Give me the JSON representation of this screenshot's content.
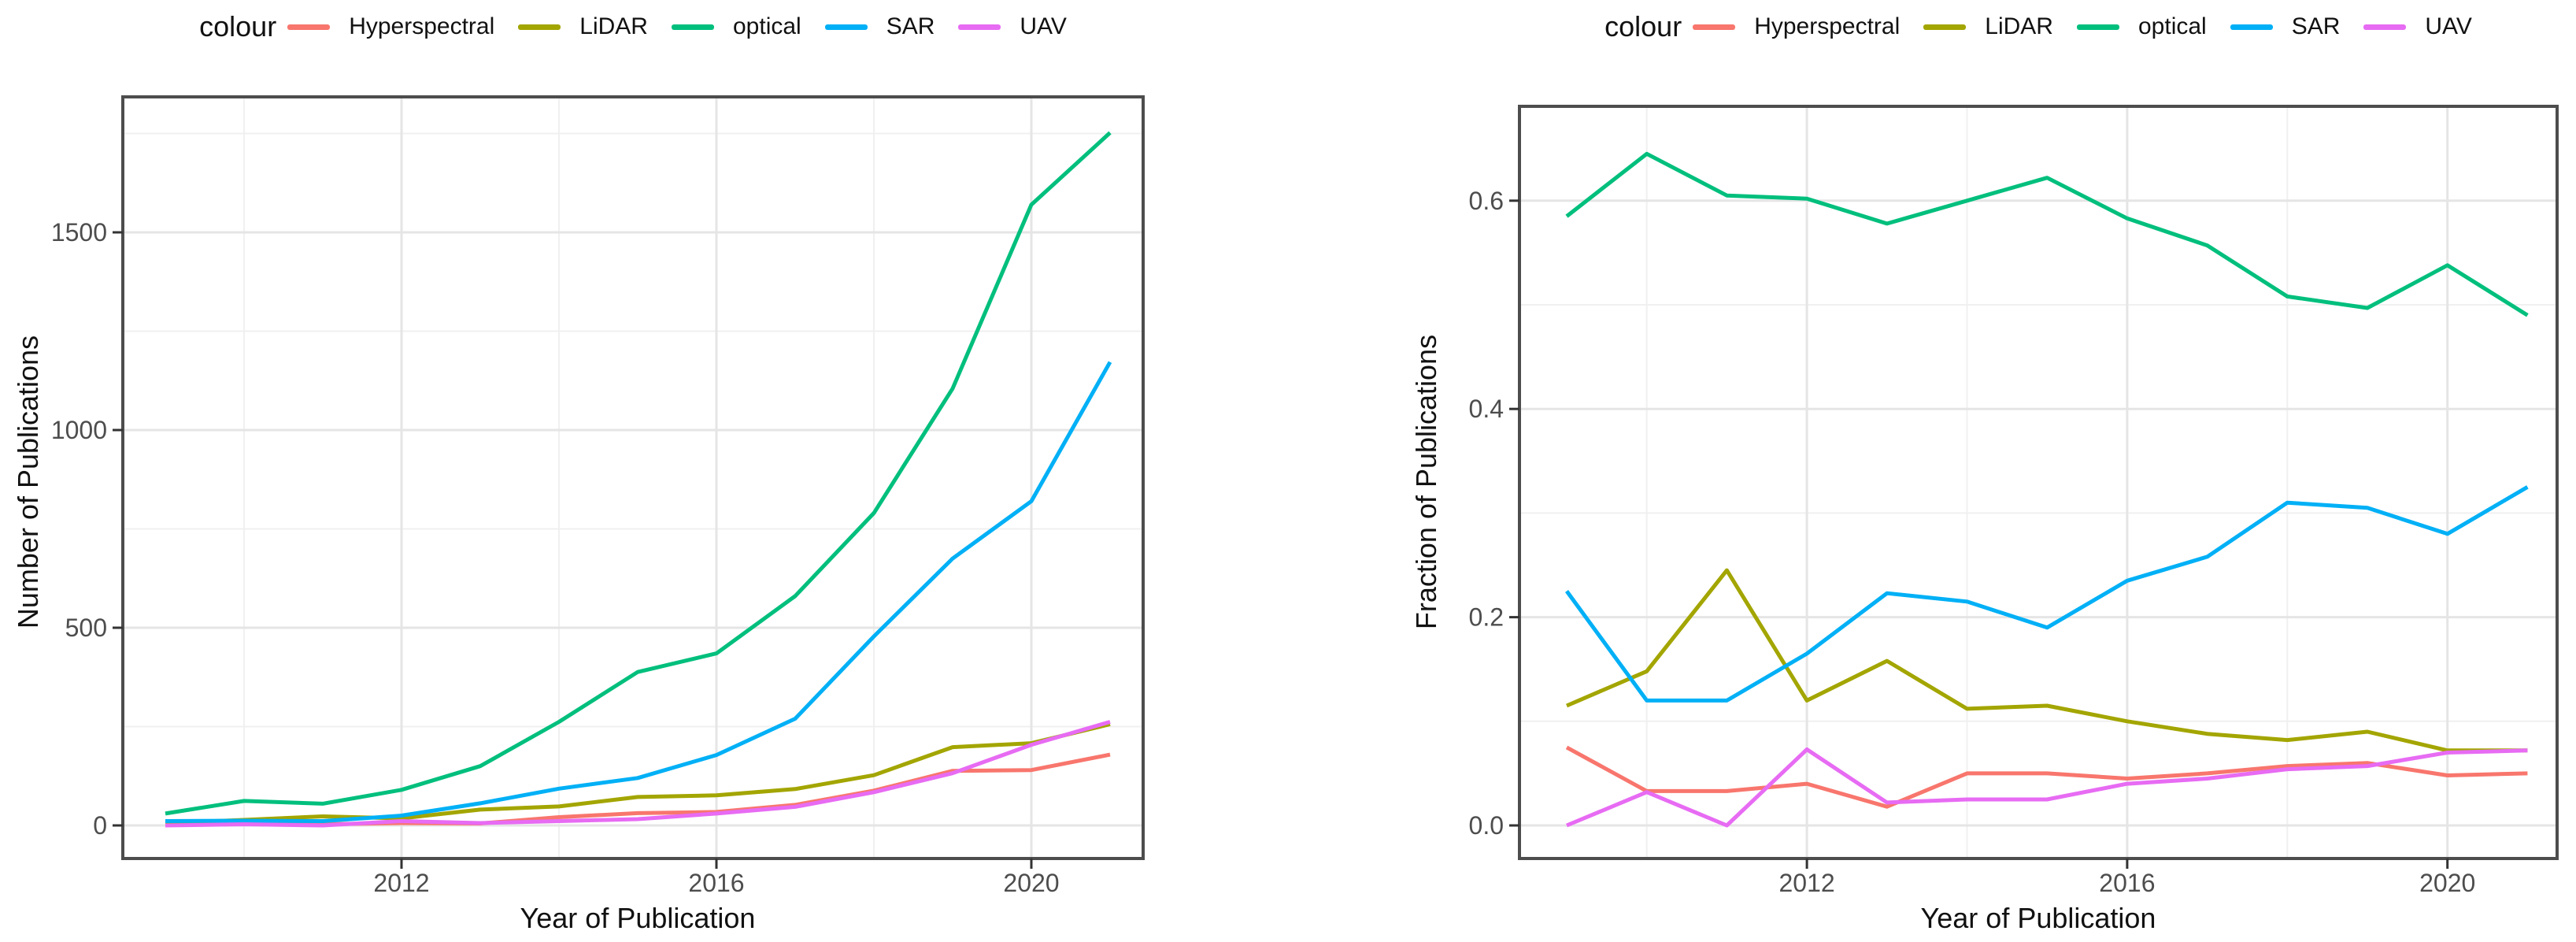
{
  "legend": {
    "title": "colour",
    "items": [
      {
        "label": "Hyperspectral",
        "color": "#F8766D"
      },
      {
        "label": "LiDAR",
        "color": "#A3A500"
      },
      {
        "label": "optical",
        "color": "#00BF7D"
      },
      {
        "label": "SAR",
        "color": "#00B0F6"
      },
      {
        "label": "UAV",
        "color": "#E76BF3"
      }
    ]
  },
  "style": {
    "grid_major_color": "#E5E5E5",
    "grid_minor_color": "#F0F0F0",
    "panel_border_color": "#4D4D4D",
    "tick_mark_color": "#333333",
    "tick_label_color": "#4d4d4d"
  },
  "chart_data": [
    {
      "type": "line",
      "title": "",
      "xlabel": "Year of Publication",
      "ylabel": "Number of Publications",
      "legend_position": "top",
      "grid": true,
      "x": [
        2009,
        2010,
        2011,
        2012,
        2013,
        2014,
        2015,
        2016,
        2017,
        2018,
        2019,
        2020,
        2021
      ],
      "xticks": [
        2012,
        2016,
        2020
      ],
      "xtick_labels": [
        "2012",
        "2016",
        "2020"
      ],
      "xticks_minor": [
        2010,
        2014,
        2018
      ],
      "yticks": [
        0,
        500,
        1000,
        1500
      ],
      "ytick_labels": [
        "0",
        "500",
        "1000",
        "1500"
      ],
      "yticks_minor": [
        250,
        750,
        1250,
        1750
      ],
      "ylim": [
        0,
        1840
      ],
      "series": [
        {
          "name": "Hyperspectral",
          "color": "#F8766D",
          "values": [
            4,
            3,
            3,
            6,
            5,
            21,
            31,
            34,
            52,
            88,
            138,
            140,
            179
          ]
        },
        {
          "name": "LiDAR",
          "color": "#A3A500",
          "values": [
            6,
            14,
            23,
            18,
            40,
            48,
            72,
            76,
            92,
            127,
            198,
            208,
            256
          ]
        },
        {
          "name": "optical",
          "color": "#00BF7D",
          "values": [
            30,
            62,
            55,
            90,
            150,
            262,
            388,
            435,
            580,
            790,
            1105,
            1570,
            1752
          ]
        },
        {
          "name": "SAR",
          "color": "#00B0F6",
          "values": [
            11,
            12,
            11,
            25,
            56,
            93,
            120,
            178,
            270,
            478,
            675,
            820,
            1172
          ]
        },
        {
          "name": "UAV",
          "color": "#E76BF3",
          "values": [
            0,
            3,
            0,
            11,
            6,
            11,
            16,
            30,
            47,
            84,
            132,
            204,
            262
          ]
        }
      ]
    },
    {
      "type": "line",
      "title": "",
      "xlabel": "Year of Publication",
      "ylabel": "Fraction of Publications",
      "legend_position": "top",
      "grid": true,
      "x": [
        2009,
        2010,
        2011,
        2012,
        2013,
        2014,
        2015,
        2016,
        2017,
        2018,
        2019,
        2020,
        2021
      ],
      "xticks": [
        2012,
        2016,
        2020
      ],
      "xtick_labels": [
        "2012",
        "2016",
        "2020"
      ],
      "xticks_minor": [
        2010,
        2014,
        2018
      ],
      "yticks": [
        0,
        0.2,
        0.4,
        0.6
      ],
      "ytick_labels": [
        "0.0",
        "0.2",
        "0.4",
        "0.6"
      ],
      "yticks_minor": [
        0.1,
        0.3,
        0.5
      ],
      "ylim": [
        0,
        0.69
      ],
      "series": [
        {
          "name": "Hyperspectral",
          "color": "#F8766D",
          "values": [
            0.075,
            0.033,
            0.033,
            0.04,
            0.018,
            0.05,
            0.05,
            0.045,
            0.05,
            0.057,
            0.06,
            0.048,
            0.05
          ]
        },
        {
          "name": "LiDAR",
          "color": "#A3A500",
          "values": [
            0.115,
            0.148,
            0.245,
            0.12,
            0.158,
            0.112,
            0.115,
            0.1,
            0.088,
            0.082,
            0.09,
            0.072,
            0.072
          ]
        },
        {
          "name": "optical",
          "color": "#00BF7D",
          "values": [
            0.585,
            0.645,
            0.605,
            0.602,
            0.578,
            0.6,
            0.622,
            0.583,
            0.557,
            0.508,
            0.497,
            0.538,
            0.49
          ]
        },
        {
          "name": "SAR",
          "color": "#00B0F6",
          "values": [
            0.225,
            0.12,
            0.12,
            0.165,
            0.223,
            0.215,
            0.19,
            0.235,
            0.258,
            0.31,
            0.305,
            0.28,
            0.325
          ]
        },
        {
          "name": "UAV",
          "color": "#E76BF3",
          "values": [
            0.0,
            0.032,
            0.0,
            0.073,
            0.022,
            0.025,
            0.025,
            0.04,
            0.045,
            0.054,
            0.057,
            0.07,
            0.072
          ]
        }
      ]
    }
  ]
}
